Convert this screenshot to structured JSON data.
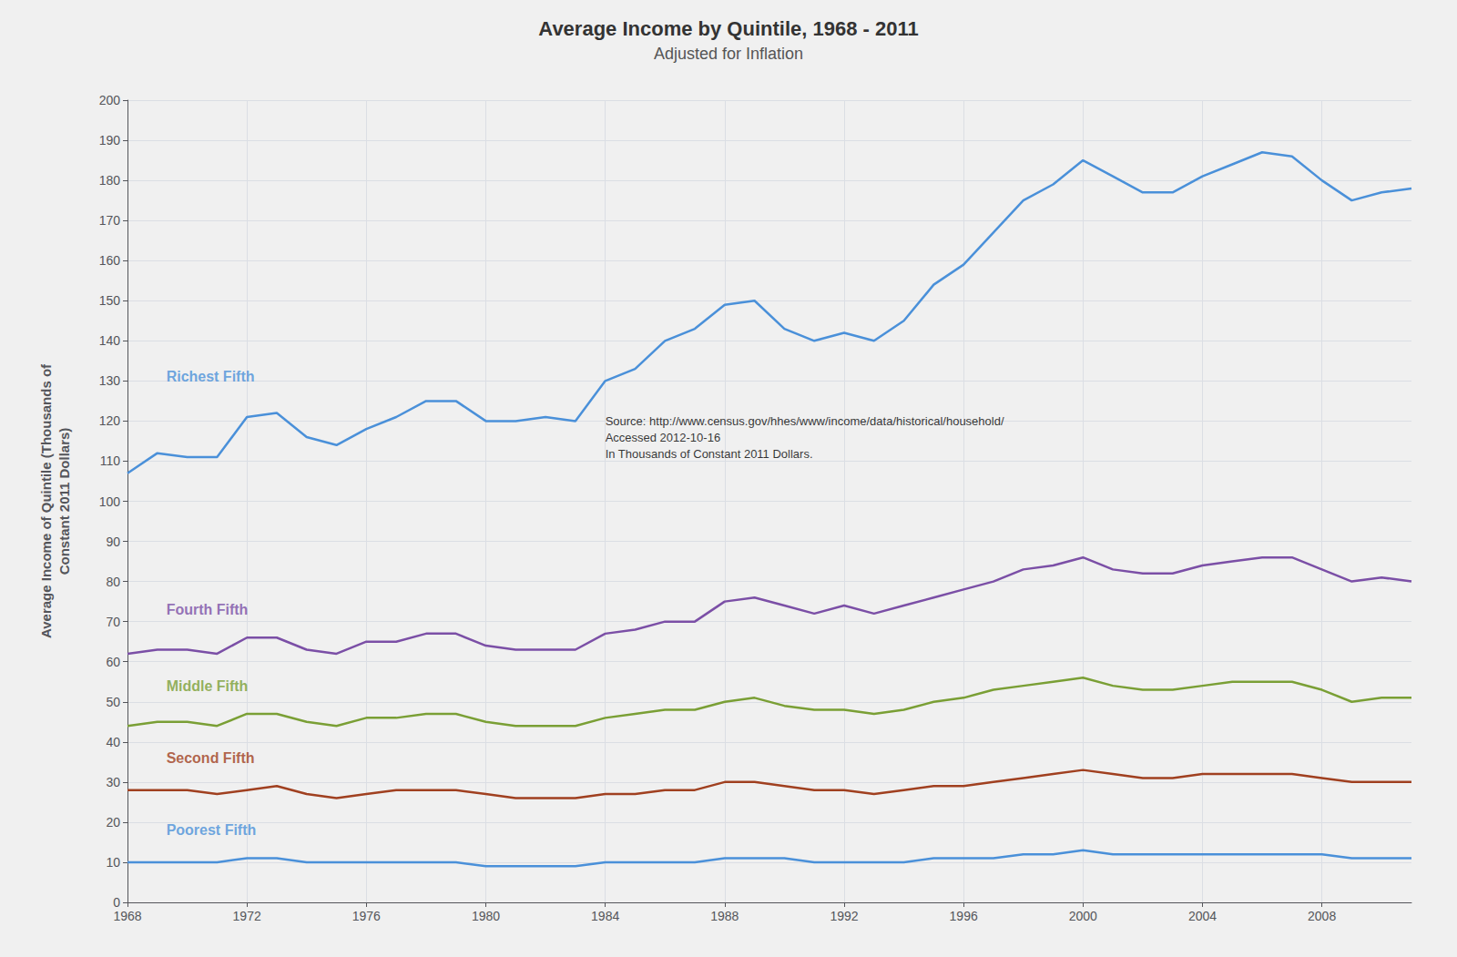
{
  "chart_data": {
    "type": "line",
    "title": "Average Income by Quintile, 1968 - 2011",
    "subtitle": "Adjusted for Inflation",
    "y_label": "Average Income of Quintile (Thousands of\nConstant 2011 Dollars)",
    "x": [
      1968,
      1969,
      1970,
      1971,
      1972,
      1973,
      1974,
      1975,
      1976,
      1977,
      1978,
      1979,
      1980,
      1981,
      1982,
      1983,
      1984,
      1985,
      1986,
      1987,
      1988,
      1989,
      1990,
      1991,
      1992,
      1993,
      1994,
      1995,
      1996,
      1997,
      1998,
      1999,
      2000,
      2001,
      2002,
      2003,
      2004,
      2005,
      2006,
      2007,
      2008,
      2009,
      2010,
      2011
    ],
    "series": [
      {
        "name": "Richest Fifth",
        "color": "#4a90d9",
        "values": [
          107,
          112,
          111,
          111,
          121,
          122,
          116,
          114,
          118,
          121,
          125,
          125,
          120,
          120,
          121,
          120,
          130,
          133,
          140,
          143,
          149,
          150,
          143,
          140,
          142,
          140,
          145,
          154,
          159,
          167,
          175,
          179,
          185,
          181,
          177,
          177,
          181,
          184,
          187,
          186,
          180,
          175,
          177,
          178
        ]
      },
      {
        "name": "Fourth Fifth",
        "color": "#7b4fa6",
        "values": [
          62,
          63,
          63,
          62,
          66,
          66,
          63,
          62,
          65,
          65,
          67,
          67,
          64,
          63,
          63,
          63,
          67,
          68,
          70,
          70,
          75,
          76,
          74,
          72,
          74,
          72,
          74,
          76,
          78,
          80,
          83,
          84,
          86,
          83,
          82,
          82,
          84,
          85,
          86,
          86,
          83,
          80,
          81,
          80
        ]
      },
      {
        "name": "Middle Fifth",
        "color": "#7a9f35",
        "values": [
          44,
          45,
          45,
          44,
          47,
          47,
          45,
          44,
          46,
          46,
          47,
          47,
          45,
          44,
          44,
          44,
          46,
          47,
          48,
          48,
          50,
          51,
          49,
          48,
          48,
          47,
          48,
          50,
          51,
          53,
          54,
          55,
          56,
          54,
          53,
          53,
          54,
          55,
          55,
          55,
          53,
          50,
          51,
          51
        ]
      },
      {
        "name": "Second Fifth",
        "color": "#a04020",
        "values": [
          28,
          28,
          28,
          27,
          28,
          29,
          27,
          26,
          27,
          28,
          28,
          28,
          27,
          26,
          26,
          26,
          27,
          27,
          28,
          28,
          30,
          30,
          29,
          28,
          28,
          27,
          28,
          29,
          29,
          30,
          31,
          32,
          33,
          32,
          31,
          31,
          32,
          32,
          32,
          32,
          31,
          30,
          30,
          30
        ]
      },
      {
        "name": "Poorest Fifth",
        "color": "#4a90d9",
        "values": [
          10,
          10,
          10,
          10,
          11,
          11,
          10,
          10,
          10,
          10,
          10,
          10,
          9,
          9,
          9,
          9,
          10,
          10,
          10,
          10,
          11,
          11,
          11,
          10,
          10,
          10,
          10,
          11,
          11,
          11,
          12,
          12,
          13,
          12,
          12,
          12,
          12,
          12,
          12,
          12,
          12,
          11,
          11,
          11
        ]
      }
    ],
    "annotations": [
      {
        "text": "Richest Fifth",
        "x": 1969.3,
        "y": 131,
        "color": "#4a90d9"
      },
      {
        "text": "Fourth Fifth",
        "x": 1969.3,
        "y": 73,
        "color": "#7b4fa6"
      },
      {
        "text": "Middle Fifth",
        "x": 1969.3,
        "y": 54,
        "color": "#7a9f35"
      },
      {
        "text": "Second Fifth",
        "x": 1969.3,
        "y": 36,
        "color": "#a04020"
      },
      {
        "text": "Poorest Fifth",
        "x": 1969.3,
        "y": 18,
        "color": "#4a90d9"
      },
      {
        "text": "Source: http://www.census.gov/hhes/www/income/data/historical/household/\nAccessed 2012-10-16\nIn Thousands of Constant 2011 Dollars.",
        "x": 1984,
        "y": 122,
        "color": "black"
      }
    ],
    "xlim": [
      1968,
      2011
    ],
    "xticks": [
      1968,
      1972,
      1976,
      1980,
      1984,
      1988,
      1992,
      1996,
      2000,
      2004,
      2008
    ],
    "ylim": [
      0,
      200
    ],
    "yticks": [
      0,
      10,
      20,
      30,
      40,
      50,
      60,
      70,
      80,
      90,
      100,
      110,
      120,
      130,
      140,
      150,
      160,
      170,
      180,
      190,
      200
    ],
    "grid": true
  }
}
